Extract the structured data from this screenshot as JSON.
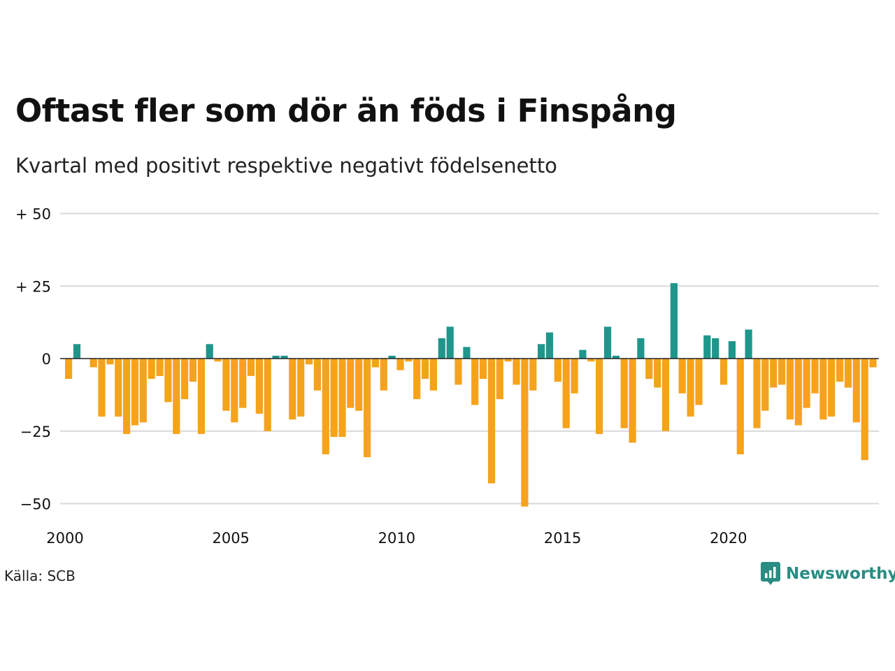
{
  "title": "Oftast fler som dör än föds i Finspång",
  "subtitle": "Kvartal med positivt respektive negativt födelsenetto",
  "source": "Källa: SCB",
  "brand": {
    "name": "Newsworthy",
    "icon": "newsworthy-logo-icon"
  },
  "colors": {
    "positive": "#1f968b",
    "negative": "#f5a31c",
    "grid": "#d9d9d9",
    "zero_line": "#222222"
  },
  "chart_data": {
    "type": "bar",
    "y_tick_labels": [
      "+ 50",
      "+ 25",
      "0",
      "−25",
      "−50"
    ],
    "y_ticks": [
      50,
      25,
      0,
      -25,
      -50
    ],
    "x_tick_labels": [
      "2000",
      "2005",
      "2010",
      "2015",
      "2020"
    ],
    "x_ticks": [
      2000,
      2005,
      2010,
      2015,
      2020
    ],
    "ylim": [
      -53,
      53
    ],
    "xlim": [
      2000,
      2024.75
    ],
    "grid": true,
    "legend": "none",
    "quarters_start": "2000 Q1",
    "values": [
      -7,
      5,
      0,
      -3,
      -20,
      -2,
      -20,
      -26,
      -23,
      -22,
      -7,
      -6,
      -15,
      -26,
      -14,
      -8,
      -26,
      5,
      -1,
      -18,
      -22,
      -17,
      -6,
      -19,
      -25,
      1,
      1,
      -21,
      -20,
      -2,
      -11,
      -33,
      -27,
      -27,
      -17,
      -18,
      -34,
      -3,
      -11,
      1,
      -4,
      -1,
      -14,
      -7,
      -11,
      7,
      11,
      -9,
      4,
      -16,
      -7,
      -43,
      -14,
      -1,
      -9,
      -51,
      -11,
      5,
      9,
      -8,
      -24,
      -12,
      3,
      -1,
      -26,
      11,
      1,
      -24,
      -29,
      7,
      -7,
      -10,
      -25,
      26,
      -12,
      -20,
      -16,
      8,
      7,
      -9,
      6,
      -33,
      10,
      -24,
      -18,
      -10,
      -9,
      -21,
      -23,
      -17,
      -12,
      -21,
      -20,
      -8,
      -10,
      -22,
      -35,
      -3
    ]
  }
}
